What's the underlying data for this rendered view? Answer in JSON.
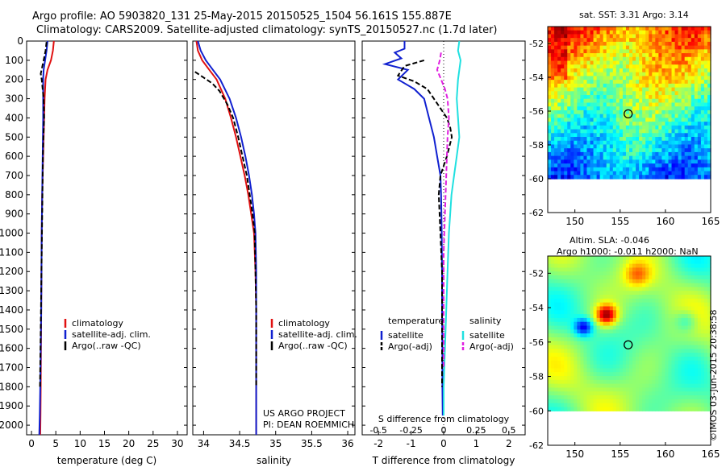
{
  "title": {
    "line1": "Argo profile: AO 5903820_131 25-May-2015 20150525_1504 56.161S 155.887E",
    "line2": "Climatology: CARS2009. Satellite-adjusted climatology: synTS_20150527.nc (1.7d later)"
  },
  "colors": {
    "climatology": "#e01010",
    "satellite": "#1020d0",
    "argo": "#000000",
    "cyan": "#20e0e0",
    "magenta": "#e020e0"
  },
  "panels": {
    "temperature": {
      "xlabel": "temperature (deg C)",
      "xticks": [
        "0",
        "5",
        "10",
        "15",
        "20",
        "25",
        "30"
      ],
      "legend": [
        "climatology",
        "satellite-adj. clim.",
        "Argo(..raw -QC)"
      ]
    },
    "salinity": {
      "xlabel": "salinity",
      "xticks": [
        "34",
        "34.5",
        "35",
        "35.5",
        "36"
      ],
      "legend": [
        "climatology",
        "satellite-adj. clim.",
        "Argo(..raw -QC)"
      ],
      "note1": "US ARGO PROJECT",
      "note2": "PI: DEAN ROEMMICH"
    },
    "difference": {
      "xlabel": "T difference from climatology",
      "xticks": [
        "-2",
        "-1",
        "0",
        "1",
        "2"
      ],
      "s_label": "S difference from climatology",
      "s_ticks": [
        "-0.5",
        "-0.25",
        "0",
        "0.25",
        "0.5"
      ],
      "legend_t_title": "temperature",
      "legend_s_title": "salinity",
      "legend_t": [
        "satellite",
        "Argo(-adj)"
      ],
      "legend_s": [
        "satellite",
        "Argo(-adj)"
      ]
    }
  },
  "depth_ticks": [
    "0",
    "100",
    "200",
    "300",
    "400",
    "500",
    "600",
    "700",
    "800",
    "900",
    "1000",
    "1100",
    "1200",
    "1300",
    "1400",
    "1500",
    "1600",
    "1700",
    "1800",
    "1900",
    "2000"
  ],
  "maps": {
    "sst": {
      "title": "sat. SST: 3.31  Argo: 3.14",
      "yticks": [
        "-52",
        "-54",
        "-56",
        "-58",
        "-60",
        "-62"
      ],
      "xticks": [
        "150",
        "155",
        "160",
        "165"
      ]
    },
    "sla": {
      "title1": "Altim. SLA: -0.046",
      "title2": "Argo h1000: -0.011 h2000: NaN",
      "yticks": [
        "-52",
        "-54",
        "-56",
        "-58",
        "-60",
        "-62"
      ],
      "xticks": [
        "150",
        "155",
        "160",
        "165"
      ]
    },
    "float_position": {
      "lon": 155.887,
      "lat": -56.161
    }
  },
  "credit": "©IMOS 03-Jun-2015 20:38:58",
  "chart_data": [
    {
      "type": "line",
      "xlabel": "temperature (deg C)",
      "ylabel": "",
      "xlim": [
        -1,
        32
      ],
      "ylim": [
        2050,
        0
      ],
      "series": [
        {
          "name": "climatology",
          "x": [
            4.6,
            4.4,
            4.0,
            3.3,
            2.9,
            2.7,
            2.6,
            2.5,
            2.4,
            2.3,
            2.2,
            2.15,
            2.1,
            2.05,
            2.0,
            1.95,
            1.9,
            1.85,
            1.8
          ],
          "y": [
            0,
            50,
            100,
            150,
            200,
            300,
            400,
            500,
            600,
            700,
            800,
            900,
            1000,
            1200,
            1400,
            1600,
            1800,
            1950,
            2050
          ]
        },
        {
          "name": "satellite-adj. clim.",
          "x": [
            3.3,
            3.1,
            2.8,
            2.5,
            2.4,
            2.4,
            2.4,
            2.35,
            2.3,
            2.25,
            2.2,
            2.15,
            2.1,
            2.05,
            2.0,
            1.9,
            1.8,
            1.7,
            1.6
          ],
          "y": [
            0,
            50,
            100,
            150,
            200,
            300,
            400,
            500,
            600,
            700,
            800,
            900,
            1000,
            1200,
            1400,
            1600,
            1800,
            1950,
            2050
          ]
        },
        {
          "name": "Argo(..raw -QC)",
          "x": [
            3.1,
            2.9,
            2.5,
            1.9,
            2.1,
            2.5,
            2.6,
            2.45,
            2.35,
            2.3,
            2.25,
            2.2,
            2.15,
            2.05,
            1.95,
            1.85,
            1.75
          ],
          "y": [
            5,
            50,
            100,
            170,
            200,
            300,
            400,
            500,
            600,
            700,
            800,
            900,
            1000,
            1200,
            1400,
            1600,
            1800
          ]
        }
      ]
    },
    {
      "type": "line",
      "xlabel": "salinity",
      "ylabel": "",
      "xlim": [
        33.85,
        36.1
      ],
      "ylim": [
        2050,
        0
      ],
      "series": [
        {
          "name": "climatology",
          "x": [
            33.9,
            33.92,
            33.98,
            34.08,
            34.18,
            34.3,
            34.38,
            34.45,
            34.51,
            34.57,
            34.62,
            34.66,
            34.7,
            34.72,
            34.73,
            34.73,
            34.73,
            34.73
          ],
          "y": [
            0,
            50,
            100,
            150,
            200,
            300,
            400,
            500,
            600,
            700,
            800,
            900,
            1000,
            1200,
            1400,
            1600,
            1800,
            2050
          ]
        },
        {
          "name": "satellite-adj. clim.",
          "x": [
            33.92,
            33.96,
            34.03,
            34.13,
            34.23,
            34.36,
            34.45,
            34.52,
            34.58,
            34.63,
            34.67,
            34.7,
            34.72,
            34.73,
            34.73,
            34.73,
            34.73,
            34.73
          ],
          "y": [
            0,
            50,
            100,
            150,
            200,
            300,
            400,
            500,
            600,
            700,
            800,
            900,
            1000,
            1200,
            1400,
            1600,
            1800,
            2050
          ]
        },
        {
          "name": "Argo(..raw -QC)",
          "x": [
            33.88,
            34.0,
            34.12,
            34.22,
            34.33,
            34.41,
            34.48,
            34.54,
            34.6,
            34.64,
            34.68,
            34.71,
            34.72,
            34.73,
            34.73,
            34.73
          ],
          "y": [
            160,
            190,
            220,
            260,
            330,
            400,
            500,
            600,
            700,
            800,
            900,
            1000,
            1200,
            1400,
            1600,
            1800
          ]
        }
      ]
    },
    {
      "type": "line",
      "xlabel": "T difference from climatology",
      "ylabel": "",
      "xlim": [
        -2.5,
        2.5
      ],
      "ylim": [
        2050,
        0
      ],
      "secondary_xlabel": "S difference from climatology",
      "secondary_xlim": [
        -0.625,
        0.625
      ],
      "series": [
        {
          "name": "satellite",
          "x": [
            -1.2,
            -1.2,
            -1.5,
            -1.3,
            -1.8,
            -1.1,
            -1.4,
            -0.9,
            -0.6,
            -0.45,
            -0.3,
            -0.2,
            -0.1,
            -0.08,
            -0.06,
            -0.05,
            -0.05,
            -0.04,
            -0.04,
            -0.03
          ],
          "y": [
            0,
            40,
            60,
            90,
            120,
            150,
            200,
            250,
            300,
            400,
            500,
            600,
            700,
            800,
            1000,
            1200,
            1400,
            1600,
            1800,
            1950
          ]
        },
        {
          "name": "Argo(-adj)",
          "x": [
            -0.6,
            -1.2,
            -1.4,
            -0.9,
            -0.5,
            -0.3,
            -0.1,
            0.1,
            0.2,
            0.25,
            0.1,
            -0.1,
            -0.15,
            -0.1,
            -0.05,
            -0.05,
            -0.05,
            -0.05
          ],
          "y": [
            100,
            130,
            180,
            210,
            250,
            300,
            350,
            400,
            450,
            500,
            600,
            700,
            800,
            1000,
            1200,
            1400,
            1600,
            1800
          ]
        },
        {
          "name": "satellite",
          "x": [
            0.12,
            0.11,
            0.13,
            0.12,
            0.11,
            0.1,
            0.11,
            0.12,
            0.1,
            0.08,
            0.06,
            0.04,
            0.03,
            0.02,
            0.01,
            0.0,
            0.0
          ],
          "y": [
            0,
            50,
            100,
            150,
            200,
            300,
            400,
            500,
            600,
            700,
            800,
            1000,
            1200,
            1400,
            1600,
            1800,
            1950
          ]
        },
        {
          "name": "Argo(-adj)",
          "x": [
            -0.02,
            -0.03,
            -0.05,
            -0.02,
            0.01,
            0.03,
            0.04,
            0.03,
            0.02,
            0.01,
            0.0,
            0.0,
            0.0
          ],
          "y": [
            60,
            100,
            150,
            200,
            250,
            300,
            400,
            500,
            700,
            900,
            1100,
            1400,
            1700
          ]
        }
      ]
    },
    {
      "type": "heatmap",
      "title": "sat. SST: 3.31  Argo: 3.14",
      "xlim": [
        147,
        165
      ],
      "ylim": [
        -62,
        -51
      ],
      "colorscale": "jet"
    },
    {
      "type": "heatmap",
      "title": "Altim. SLA: -0.046",
      "xlim": [
        147,
        165
      ],
      "ylim": [
        -62,
        -51
      ],
      "colorscale": "jet"
    }
  ]
}
